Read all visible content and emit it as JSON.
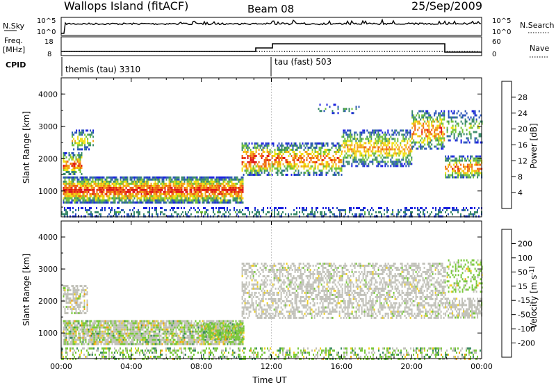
{
  "header": {
    "title": "Wallops Island (fitACF)",
    "beam": "Beam 08",
    "date": "25/Sep/2009"
  },
  "summary": {
    "nsky_label": "N.Sky",
    "nsky_ticks": [
      "10^5",
      "10^0"
    ],
    "nsearch_label": "N.Search",
    "nsearch_ticks": [
      "10^5",
      "10^0"
    ],
    "freq_label_line1": "Freq.",
    "freq_label_line2": "[MHz]",
    "freq_ticks": [
      "18",
      "8"
    ],
    "nave_label": "Nave",
    "nave_ticks": [
      "60",
      "0"
    ],
    "cpid_label": "CPID",
    "cpid_segments": [
      {
        "label": "themis (tau) 3310",
        "start_hour": 0
      },
      {
        "label": "tau (fast) 503",
        "start_hour": 12
      }
    ]
  },
  "colors": {
    "power": [
      "#1a20e0",
      "#2a55b8",
      "#3a8a6a",
      "#72c23a",
      "#f0e010",
      "#f4a418",
      "#ee6210",
      "#e01818"
    ],
    "velocity": [
      "#e01010",
      "#ee5010",
      "#f0a010",
      "#f0d020",
      "#c0c0b8",
      "#78c838",
      "#3a8a60",
      "#2050a8",
      "#1818d8"
    ]
  },
  "chart_data": [
    {
      "type": "heatmap",
      "panel": "power",
      "ylabel": "Slant Range [km]",
      "yticks": [
        "1000",
        "2000",
        "3000",
        "4000"
      ],
      "ylim": [
        200,
        4500
      ],
      "xlim_hours": [
        0,
        24
      ],
      "colorbar_label": "Power [dB]",
      "colorbar_ticks": [
        "4",
        "8",
        "12",
        "16",
        "20",
        "24",
        "28"
      ],
      "echo_regions": [
        {
          "t0": 0.1,
          "t1": 10.4,
          "r0": 650,
          "r1": 1450,
          "peak_db": 28
        },
        {
          "t0": 0.1,
          "t1": 1.2,
          "r0": 1500,
          "r1": 2900,
          "peak_db": 24
        },
        {
          "t0": 10.3,
          "t1": 11.9,
          "r0": 1500,
          "r1": 2500,
          "peak_db": 28
        },
        {
          "t0": 12.0,
          "t1": 21.9,
          "r0": 1500,
          "r1": 3500,
          "peak_db": 26
        },
        {
          "t0": 21.9,
          "t1": 24.0,
          "r0": 1400,
          "r1": 3500,
          "peak_db": 24
        },
        {
          "t0": 0.0,
          "t1": 24.0,
          "r0": 200,
          "r1": 500,
          "peak_db": 16
        }
      ]
    },
    {
      "type": "heatmap",
      "panel": "velocity",
      "ylabel": "Slant Range [km]",
      "yticks": [
        "1000",
        "2000",
        "3000",
        "4000"
      ],
      "ylim": [
        200,
        4500
      ],
      "xlim_hours": [
        0,
        24
      ],
      "xlabel": "Time UT",
      "xticks": [
        "00:00",
        "04:00",
        "08:00",
        "12:00",
        "16:00",
        "20:00",
        "00:00"
      ],
      "colorbar_label": "Velocity [m s^-1]",
      "colorbar_ticks": [
        "200",
        "100",
        "50",
        "15",
        "-15",
        "-50",
        "-100",
        "-200"
      ]
    }
  ]
}
